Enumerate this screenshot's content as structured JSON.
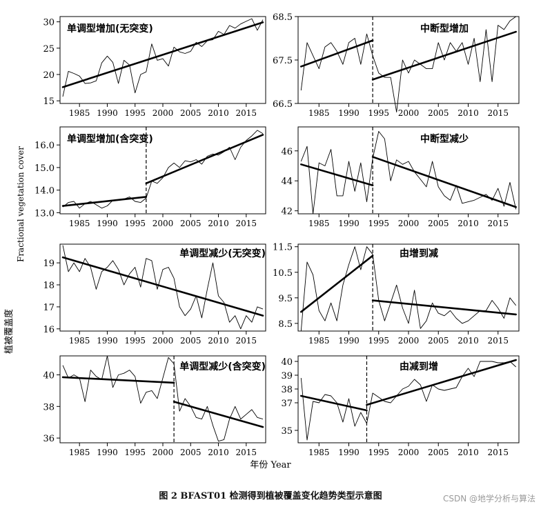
{
  "figure": {
    "caption": "图 2    BFAST01 检测得到植被覆盖变化趋势类型示意图",
    "xlabel": "年份 Year",
    "ylabel_en": "Fractional vegetation cover",
    "ylabel_cn": "植被覆盖度",
    "watermark": "CSDN @地学分析与算法"
  },
  "chart_data": [
    {
      "type": "line",
      "title": "单调型增加(无突变)",
      "break_year": null,
      "xlim": [
        1981.5,
        2018.5
      ],
      "ylim": [
        14.5,
        31.0
      ],
      "yticks": [
        15,
        20,
        25,
        30
      ],
      "xticks": [
        1985,
        1990,
        1995,
        2000,
        2005,
        2010,
        2015
      ],
      "x": [
        1982,
        1983,
        1984,
        1985,
        1986,
        1987,
        1988,
        1989,
        1990,
        1991,
        1992,
        1993,
        1994,
        1995,
        1996,
        1997,
        1998,
        1999,
        2000,
        2001,
        2002,
        2003,
        2004,
        2005,
        2006,
        2007,
        2008,
        2009,
        2010,
        2011,
        2012,
        2013,
        2014,
        2015,
        2016,
        2017,
        2018
      ],
      "values": [
        15.8,
        20.6,
        20.2,
        19.7,
        18.3,
        18.4,
        18.8,
        22.2,
        23.5,
        22.3,
        18.3,
        22.7,
        21.8,
        16.5,
        20.0,
        20.5,
        25.8,
        22.7,
        23.0,
        21.6,
        25.2,
        24.3,
        24.0,
        24.4,
        26.1,
        25.3,
        26.4,
        26.6,
        28.2,
        27.6,
        29.3,
        28.8,
        29.6,
        30.1,
        30.6,
        28.4,
        30.4
      ],
      "trend": [
        {
          "x": [
            1982,
            2018
          ],
          "y": [
            17.6,
            29.9
          ]
        }
      ]
    },
    {
      "type": "line",
      "title": "中断型增加",
      "break_year": 1994,
      "xlim": [
        1981.5,
        2018.5
      ],
      "ylim": [
        66.5,
        68.5
      ],
      "yticks": [
        66.5,
        67.5,
        68.5
      ],
      "xticks": [
        1985,
        1990,
        1995,
        2000,
        2005,
        2010,
        2015
      ],
      "x": [
        1982,
        1983,
        1984,
        1985,
        1986,
        1987,
        1988,
        1989,
        1990,
        1991,
        1992,
        1993,
        1994,
        1995,
        1996,
        1997,
        1998,
        1999,
        2000,
        2001,
        2002,
        2003,
        2004,
        2005,
        2006,
        2007,
        2008,
        2009,
        2010,
        2011,
        2012,
        2013,
        2014,
        2015,
        2016,
        2017,
        2018
      ],
      "values": [
        66.8,
        67.9,
        67.6,
        67.3,
        67.8,
        67.9,
        67.7,
        67.4,
        67.9,
        68.0,
        67.4,
        68.1,
        67.6,
        67.2,
        67.1,
        67.1,
        66.3,
        67.5,
        67.2,
        67.5,
        67.4,
        67.3,
        67.3,
        67.9,
        67.5,
        67.9,
        67.7,
        67.9,
        67.4,
        68.0,
        67.0,
        68.2,
        67.0,
        68.3,
        68.2,
        68.4,
        68.5
      ],
      "trend": [
        {
          "x": [
            1982,
            1994
          ],
          "y": [
            67.35,
            67.95
          ]
        },
        {
          "x": [
            1994,
            2018
          ],
          "y": [
            67.05,
            68.15
          ]
        }
      ]
    },
    {
      "type": "line",
      "title": "单调型增加(含突变)",
      "break_year": 1997,
      "xlim": [
        1981.5,
        2018.5
      ],
      "ylim": [
        12.95,
        16.8
      ],
      "yticks": [
        13.0,
        14.0,
        15.0,
        16.0
      ],
      "xticks": [
        1985,
        1990,
        1995,
        2000,
        2005,
        2010,
        2015
      ],
      "x": [
        1982,
        1983,
        1984,
        1985,
        1986,
        1987,
        1988,
        1989,
        1990,
        1991,
        1992,
        1993,
        1994,
        1995,
        1996,
        1997,
        1998,
        1999,
        2000,
        2001,
        2002,
        2003,
        2004,
        2005,
        2006,
        2007,
        2008,
        2009,
        2010,
        2011,
        2012,
        2013,
        2014,
        2015,
        2016,
        2017,
        2018
      ],
      "values": [
        13.25,
        13.45,
        13.5,
        13.2,
        13.4,
        13.5,
        13.35,
        13.2,
        13.3,
        13.55,
        13.55,
        13.6,
        13.7,
        13.5,
        13.45,
        13.65,
        14.4,
        14.3,
        14.55,
        15.0,
        15.2,
        15.0,
        15.3,
        15.25,
        15.35,
        15.15,
        15.5,
        15.6,
        15.55,
        15.7,
        15.9,
        15.35,
        15.9,
        16.2,
        16.4,
        16.65,
        16.5
      ],
      "trend": [
        {
          "x": [
            1982,
            1997
          ],
          "y": [
            13.3,
            13.7
          ]
        },
        {
          "x": [
            1997,
            2018
          ],
          "y": [
            14.3,
            16.45
          ]
        }
      ]
    },
    {
      "type": "line",
      "title": "中断型减少",
      "break_year": 1994,
      "xlim": [
        1981.5,
        2018.5
      ],
      "ylim": [
        41.8,
        47.6
      ],
      "yticks": [
        42,
        44,
        46
      ],
      "xticks": [
        1985,
        1990,
        1995,
        2000,
        2005,
        2010,
        2015
      ],
      "x": [
        1982,
        1983,
        1984,
        1985,
        1986,
        1987,
        1988,
        1989,
        1990,
        1991,
        1992,
        1993,
        1994,
        1995,
        1996,
        1997,
        1998,
        1999,
        2000,
        2001,
        2002,
        2003,
        2004,
        2005,
        2006,
        2007,
        2008,
        2009,
        2010,
        2011,
        2012,
        2013,
        2014,
        2015,
        2016,
        2017,
        2018
      ],
      "values": [
        45.3,
        46.3,
        41.8,
        45.2,
        45.0,
        46.1,
        43.0,
        43.0,
        45.3,
        43.3,
        45.2,
        42.6,
        45.5,
        47.3,
        46.8,
        44.0,
        45.4,
        45.1,
        45.3,
        44.6,
        44.1,
        43.6,
        45.3,
        43.6,
        43.0,
        42.7,
        43.7,
        42.5,
        42.6,
        42.7,
        42.9,
        43.1,
        42.7,
        43.5,
        42.3,
        43.9,
        42.1
      ],
      "trend": [
        {
          "x": [
            1982,
            1994
          ],
          "y": [
            45.1,
            43.7
          ]
        },
        {
          "x": [
            1994,
            2018
          ],
          "y": [
            45.6,
            42.25
          ]
        }
      ]
    },
    {
      "type": "line",
      "title": "单调型减少(无突变)",
      "break_year": null,
      "xlim": [
        1981.5,
        2018.5
      ],
      "ylim": [
        15.9,
        19.85
      ],
      "yticks": [
        16,
        17,
        18,
        19
      ],
      "xticks": [
        1985,
        1990,
        1995,
        2000,
        2005,
        2010,
        2015
      ],
      "x": [
        1982,
        1983,
        1984,
        1985,
        1986,
        1987,
        1988,
        1989,
        1990,
        1991,
        1992,
        1993,
        1994,
        1995,
        1996,
        1997,
        1998,
        1999,
        2000,
        2001,
        2002,
        2003,
        2004,
        2005,
        2006,
        2007,
        2008,
        2009,
        2010,
        2011,
        2012,
        2013,
        2014,
        2015,
        2016,
        2017,
        2018
      ],
      "values": [
        19.8,
        18.6,
        19.0,
        18.6,
        19.2,
        18.8,
        17.8,
        18.6,
        18.8,
        19.1,
        18.7,
        18.0,
        18.5,
        18.8,
        17.9,
        19.2,
        19.1,
        17.8,
        18.7,
        18.8,
        18.3,
        17.0,
        16.6,
        16.9,
        17.5,
        16.5,
        17.8,
        19.0,
        17.5,
        17.2,
        16.3,
        16.6,
        16.0,
        16.6,
        16.3,
        17.0,
        16.9
      ],
      "trend": [
        {
          "x": [
            1982,
            2018
          ],
          "y": [
            19.25,
            16.6
          ]
        }
      ]
    },
    {
      "type": "line",
      "title": "由增到减",
      "break_year": 1994,
      "xlim": [
        1981.5,
        2018.5
      ],
      "ylim": [
        8.2,
        11.6
      ],
      "yticks": [
        8.5,
        9.5,
        10.5,
        11.5
      ],
      "xticks": [
        1985,
        1990,
        1995,
        2000,
        2005,
        2010,
        2015
      ],
      "x": [
        1982,
        1983,
        1984,
        1985,
        1986,
        1987,
        1988,
        1989,
        1990,
        1991,
        1992,
        1993,
        1994,
        1995,
        1996,
        1997,
        1998,
        1999,
        2000,
        2001,
        2002,
        2003,
        2004,
        2005,
        2006,
        2007,
        2008,
        2009,
        2010,
        2011,
        2012,
        2013,
        2014,
        2015,
        2016,
        2017,
        2018
      ],
      "values": [
        8.2,
        10.9,
        10.4,
        9.0,
        8.6,
        9.3,
        8.6,
        10.0,
        10.8,
        11.5,
        10.6,
        11.5,
        11.2,
        9.4,
        8.6,
        9.3,
        10.0,
        9.1,
        8.5,
        9.8,
        8.3,
        8.6,
        9.3,
        8.9,
        8.8,
        9.0,
        8.7,
        8.5,
        8.6,
        8.8,
        9.0,
        9.0,
        9.4,
        9.1,
        8.7,
        9.5,
        9.2
      ],
      "trend": [
        {
          "x": [
            1982,
            1994
          ],
          "y": [
            8.95,
            11.15
          ]
        },
        {
          "x": [
            1994,
            2018
          ],
          "y": [
            9.4,
            8.85
          ]
        }
      ]
    },
    {
      "type": "line",
      "title": "单调型减少(含突变)",
      "break_year": 2002,
      "xlim": [
        1981.5,
        2018.5
      ],
      "ylim": [
        35.7,
        41.2
      ],
      "yticks": [
        36,
        38,
        40
      ],
      "xticks": [
        1985,
        1990,
        1995,
        2000,
        2005,
        2010,
        2015
      ],
      "x": [
        1982,
        1983,
        1984,
        1985,
        1986,
        1987,
        1988,
        1989,
        1990,
        1991,
        1992,
        1993,
        1994,
        1995,
        1996,
        1997,
        1998,
        1999,
        2000,
        2001,
        2002,
        2003,
        2004,
        2005,
        2006,
        2007,
        2008,
        2009,
        2010,
        2011,
        2012,
        2013,
        2014,
        2015,
        2016,
        2017,
        2018
      ],
      "values": [
        40.6,
        39.8,
        40.0,
        39.8,
        38.3,
        40.3,
        39.9,
        39.7,
        41.2,
        39.2,
        40.0,
        40.1,
        40.3,
        39.9,
        38.2,
        38.9,
        39.0,
        38.5,
        39.8,
        41.1,
        40.7,
        37.7,
        38.5,
        38.0,
        37.3,
        37.2,
        38.0,
        36.8,
        35.8,
        35.9,
        37.2,
        38.0,
        37.2,
        37.5,
        37.8,
        37.3,
        37.2
      ],
      "trend": [
        {
          "x": [
            1982,
            2002
          ],
          "y": [
            39.85,
            39.5
          ]
        },
        {
          "x": [
            2002,
            2018
          ],
          "y": [
            38.3,
            36.7
          ]
        }
      ]
    },
    {
      "type": "line",
      "title": "由减到增",
      "break_year": 1993,
      "xlim": [
        1981.5,
        2018.5
      ],
      "ylim": [
        34.1,
        40.4
      ],
      "yticks": [
        35,
        37,
        38,
        39,
        40
      ],
      "xticks": [
        1985,
        1990,
        1995,
        2000,
        2005,
        2010,
        2015
      ],
      "x": [
        1982,
        1983,
        1984,
        1985,
        1986,
        1987,
        1988,
        1989,
        1990,
        1991,
        1992,
        1993,
        1994,
        1995,
        1996,
        1997,
        1998,
        1999,
        2000,
        2001,
        2002,
        2003,
        2004,
        2005,
        2006,
        2007,
        2008,
        2009,
        2010,
        2011,
        2012,
        2013,
        2014,
        2015,
        2016,
        2017,
        2018
      ],
      "values": [
        38.8,
        34.3,
        37.1,
        37.0,
        37.6,
        37.5,
        37.0,
        35.6,
        37.3,
        35.3,
        36.3,
        35.5,
        37.7,
        37.4,
        37.1,
        37.0,
        37.5,
        38.0,
        38.2,
        38.7,
        38.3,
        37.1,
        38.3,
        38.0,
        37.9,
        38.0,
        38.1,
        38.9,
        39.5,
        38.9,
        40.0,
        40.0,
        40.0,
        39.9,
        39.9,
        40.0,
        39.6
      ],
      "trend": [
        {
          "x": [
            1982,
            1993
          ],
          "y": [
            37.5,
            36.45
          ]
        },
        {
          "x": [
            1993,
            2018
          ],
          "y": [
            36.85,
            40.1
          ]
        }
      ]
    }
  ]
}
